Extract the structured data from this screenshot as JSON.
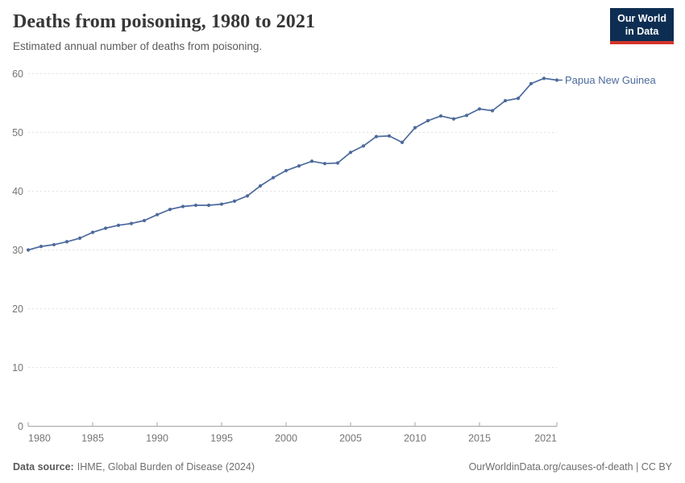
{
  "header": {
    "title": "Deaths from poisoning, 1980 to 2021",
    "subtitle": "Estimated annual number of deaths from poisoning."
  },
  "logo": {
    "line1": "Our World",
    "line2": "in Data"
  },
  "footer": {
    "source_label": "Data source:",
    "source_value": "IHME, Global Burden of Disease (2024)",
    "credit": "OurWorldinData.org/causes-of-death | CC BY"
  },
  "colors": {
    "line": "#4C6A9C",
    "entity_label": "#4C6A9C",
    "grid": "#e0e0e0",
    "axis": "#a3a3a3",
    "tick_label": "#757575",
    "logo_bg": "#0d2e52",
    "logo_red": "#d3352b"
  },
  "chart_data": {
    "type": "line",
    "title": "Deaths from poisoning, 1980 to 2021",
    "subtitle": "Estimated annual number of deaths from poisoning.",
    "entity": "Papua New Guinea",
    "xlabel": "",
    "ylabel": "",
    "xlim": [
      1980,
      2021
    ],
    "ylim": [
      0,
      60
    ],
    "xticks": [
      1980,
      1985,
      1990,
      1995,
      2000,
      2005,
      2010,
      2015,
      2021
    ],
    "yticks": [
      0,
      10,
      20,
      30,
      40,
      50,
      60
    ],
    "grid": "horizontal-dashed",
    "legend_position": "end-of-line-label",
    "x": [
      1980,
      1981,
      1982,
      1983,
      1984,
      1985,
      1986,
      1987,
      1988,
      1989,
      1990,
      1991,
      1992,
      1993,
      1994,
      1995,
      1996,
      1997,
      1998,
      1999,
      2000,
      2001,
      2002,
      2003,
      2004,
      2005,
      2006,
      2007,
      2008,
      2009,
      2010,
      2011,
      2012,
      2013,
      2014,
      2015,
      2016,
      2017,
      2018,
      2019,
      2020,
      2021
    ],
    "series": [
      {
        "name": "Papua New Guinea",
        "values": [
          30.0,
          30.6,
          30.9,
          31.4,
          32.0,
          33.0,
          33.7,
          34.2,
          34.5,
          35.0,
          36.0,
          36.9,
          37.4,
          37.6,
          37.6,
          37.8,
          38.3,
          39.2,
          40.9,
          42.3,
          43.5,
          44.3,
          45.1,
          44.7,
          44.8,
          46.6,
          47.7,
          49.3,
          49.4,
          48.3,
          50.8,
          52.0,
          52.8,
          52.3,
          52.9,
          54.0,
          53.7,
          55.4,
          55.8,
          58.3,
          59.2,
          58.9
        ]
      }
    ]
  }
}
